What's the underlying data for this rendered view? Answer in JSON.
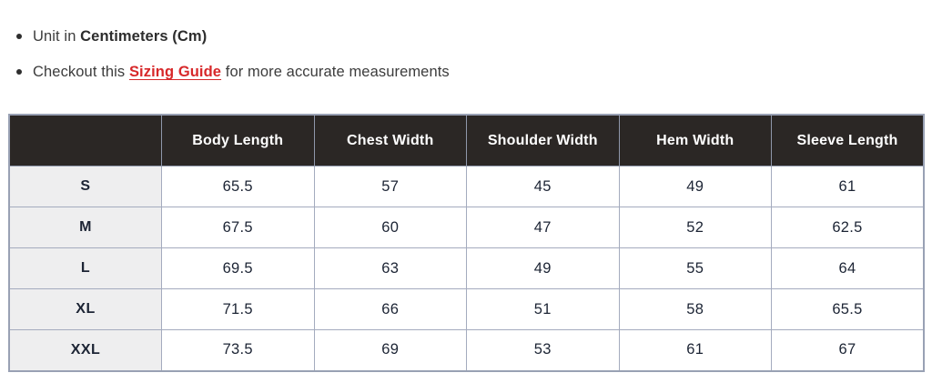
{
  "notes": {
    "unit_prefix": "Unit in ",
    "unit_bold": "Centimeters (Cm)",
    "guide_prefix": "Checkout this ",
    "guide_link": "Sizing Guide",
    "guide_suffix": " for more accurate measurements"
  },
  "table": {
    "corner_label": "",
    "columns": [
      "Body Length",
      "Chest Width",
      "Shoulder Width",
      "Hem Width",
      "Sleeve Length"
    ],
    "rows": [
      {
        "size": "S",
        "values": [
          "65.5",
          "57",
          "45",
          "49",
          "61"
        ]
      },
      {
        "size": "M",
        "values": [
          "67.5",
          "60",
          "47",
          "52",
          "62.5"
        ]
      },
      {
        "size": "L",
        "values": [
          "69.5",
          "63",
          "49",
          "55",
          "64"
        ]
      },
      {
        "size": "XL",
        "values": [
          "71.5",
          "66",
          "51",
          "58",
          "65.5"
        ]
      },
      {
        "size": "XXL",
        "values": [
          "73.5",
          "69",
          "53",
          "61",
          "67"
        ]
      }
    ]
  },
  "colors": {
    "header_background": "#2b2725",
    "header_text": "#ffffff",
    "grid_border": "#a4abbe",
    "size_column_background": "#eeeeef",
    "cell_text": "#1c2434",
    "body_text": "#3c3c3c",
    "link_red": "#d7282a"
  }
}
